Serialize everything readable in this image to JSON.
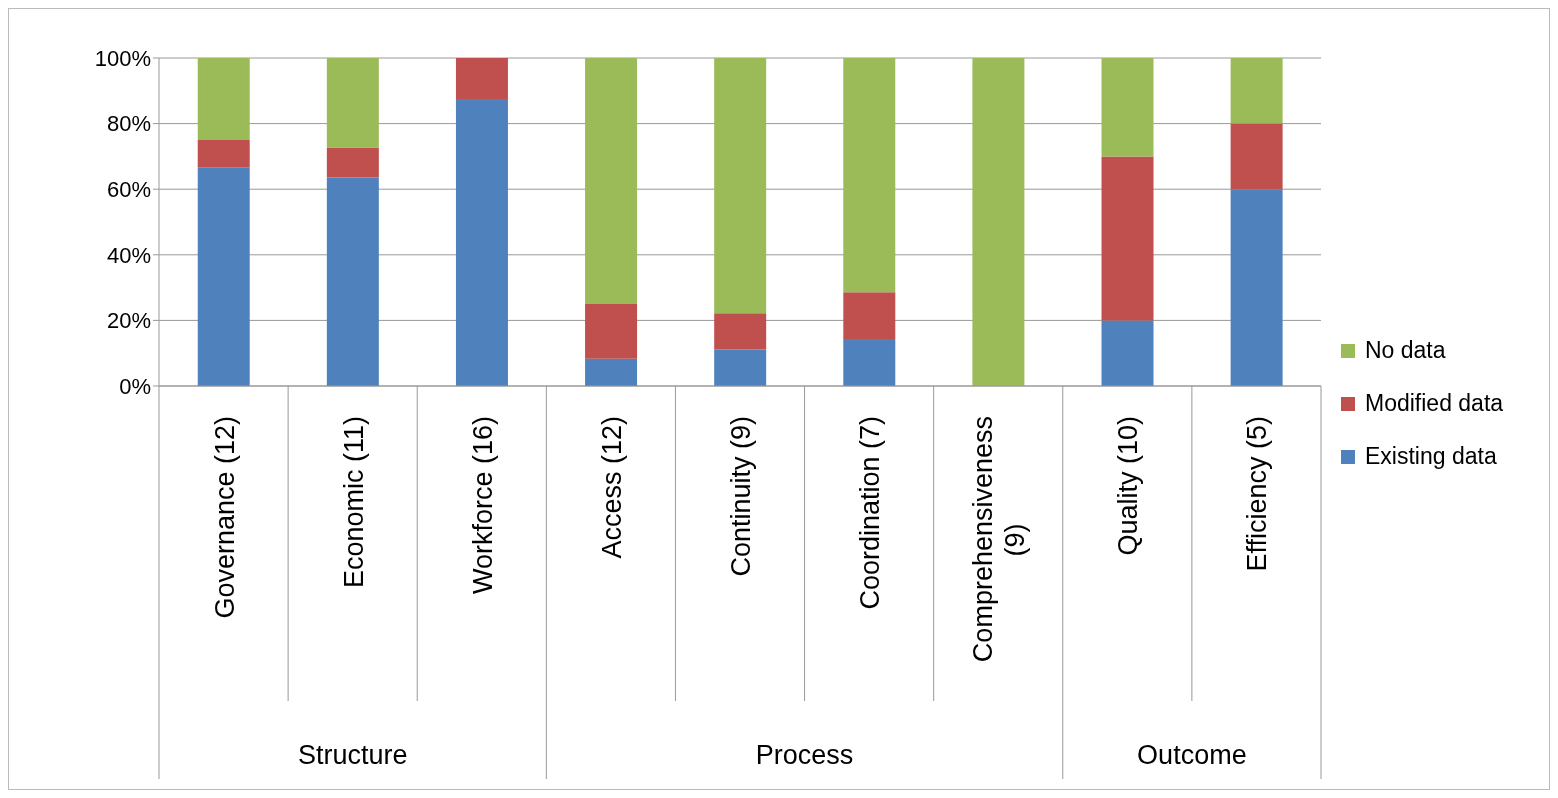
{
  "chart_data": {
    "type": "bar",
    "stacked": true,
    "categories": [
      "Governance (12)",
      "Economic (11)",
      "Workforce (16)",
      "Access (12)",
      "Continuity (9)",
      "Coordination (7)",
      "Comprehensiveness (9)",
      "Quality (10)",
      "Efficiency (5)"
    ],
    "series": [
      {
        "name": "Existing data",
        "color": "#4f81bd",
        "values": [
          66.7,
          63.6,
          87.5,
          8.3,
          11.1,
          14.3,
          0,
          20,
          60
        ]
      },
      {
        "name": "Modified data",
        "color": "#c0504d",
        "values": [
          8.3,
          9.1,
          12.5,
          16.7,
          11.1,
          14.3,
          0,
          50,
          20
        ]
      },
      {
        "name": "No data",
        "color": "#9bbb59",
        "values": [
          25,
          27.3,
          0,
          75,
          77.8,
          71.4,
          100,
          30,
          20
        ]
      }
    ],
    "ylim": [
      0,
      100
    ],
    "yticks": [
      {
        "value": 0,
        "label": "0%"
      },
      {
        "value": 20,
        "label": "20%"
      },
      {
        "value": 40,
        "label": "40%"
      },
      {
        "value": 60,
        "label": "60%"
      },
      {
        "value": 80,
        "label": "80%"
      },
      {
        "value": 100,
        "label": "100%"
      }
    ],
    "grid": "y",
    "legend": "right",
    "annotations": [
      "Structure",
      "Process",
      "Outcome"
    ]
  }
}
